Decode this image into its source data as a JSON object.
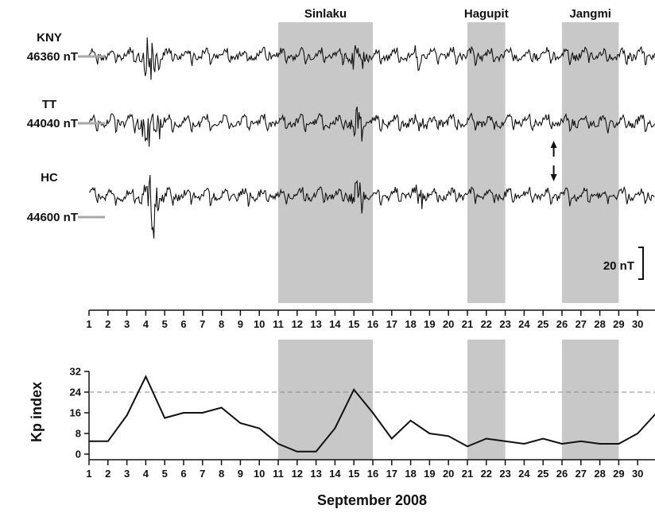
{
  "chart_data": [
    {
      "type": "line",
      "description_kind": "geomagnetic time series (three stations, stacked)",
      "xlabel": "",
      "x_unit": "day of September 2008",
      "xlim": [
        1,
        31
      ],
      "x_ticks": [
        "1",
        "2",
        "3",
        "4",
        "5",
        "6",
        "7",
        "8",
        "9",
        "10",
        "11",
        "12",
        "13",
        "14",
        "15",
        "16",
        "17",
        "18",
        "19",
        "20",
        "21",
        "22",
        "23",
        "24",
        "25",
        "26",
        "27",
        "28",
        "29",
        "30"
      ],
      "scale_bar": "20 nT",
      "shaded_periods": [
        {
          "name": "Sinlaku",
          "start": 11,
          "end": 16
        },
        {
          "name": "Hagupit",
          "start": 21,
          "end": 23
        },
        {
          "name": "Jangmi",
          "start": 26,
          "end": 29
        }
      ],
      "arrow_day": 25.1,
      "series": [
        {
          "name": "KNY",
          "baseline_label": "46360 nT"
        },
        {
          "name": "TT",
          "baseline_label": "44040 nT"
        },
        {
          "name": "HC",
          "baseline_label": "44600 nT"
        }
      ]
    },
    {
      "type": "line",
      "title": "",
      "xlabel": "September 2008",
      "ylabel": "Kp index",
      "xlim": [
        1,
        31
      ],
      "ylim": [
        0,
        32
      ],
      "y_ticks": [
        "0",
        "8",
        "16",
        "24",
        "32"
      ],
      "x_ticks": [
        "1",
        "2",
        "3",
        "4",
        "5",
        "6",
        "7",
        "8",
        "9",
        "10",
        "11",
        "12",
        "13",
        "14",
        "15",
        "16",
        "17",
        "18",
        "19",
        "20",
        "21",
        "22",
        "23",
        "24",
        "25",
        "26",
        "27",
        "28",
        "29",
        "30"
      ],
      "reference_line": 24,
      "shaded_periods": [
        {
          "name": "Sinlaku",
          "start": 11,
          "end": 16
        },
        {
          "name": "Hagupit",
          "start": 21,
          "end": 23
        },
        {
          "name": "Jangmi",
          "start": 26,
          "end": 29
        }
      ],
      "x": [
        1,
        2,
        3,
        4,
        5,
        6,
        7,
        8,
        9,
        10,
        11,
        12,
        13,
        14,
        15,
        16,
        17,
        18,
        19,
        20,
        21,
        22,
        23,
        24,
        25,
        26,
        27,
        28,
        29,
        30,
        31
      ],
      "values": [
        5,
        5,
        15,
        30,
        14,
        16,
        16,
        18,
        12,
        10,
        4,
        1,
        1,
        10,
        25,
        16,
        6,
        13,
        8,
        7,
        3,
        6,
        5,
        4,
        6,
        4,
        5,
        4,
        4,
        8,
        16
      ]
    }
  ],
  "colors": {
    "shade": "#c8c8c8",
    "trace": "#111111",
    "baseline_marker": "#a8a8a8",
    "reference_line": "#888888"
  }
}
